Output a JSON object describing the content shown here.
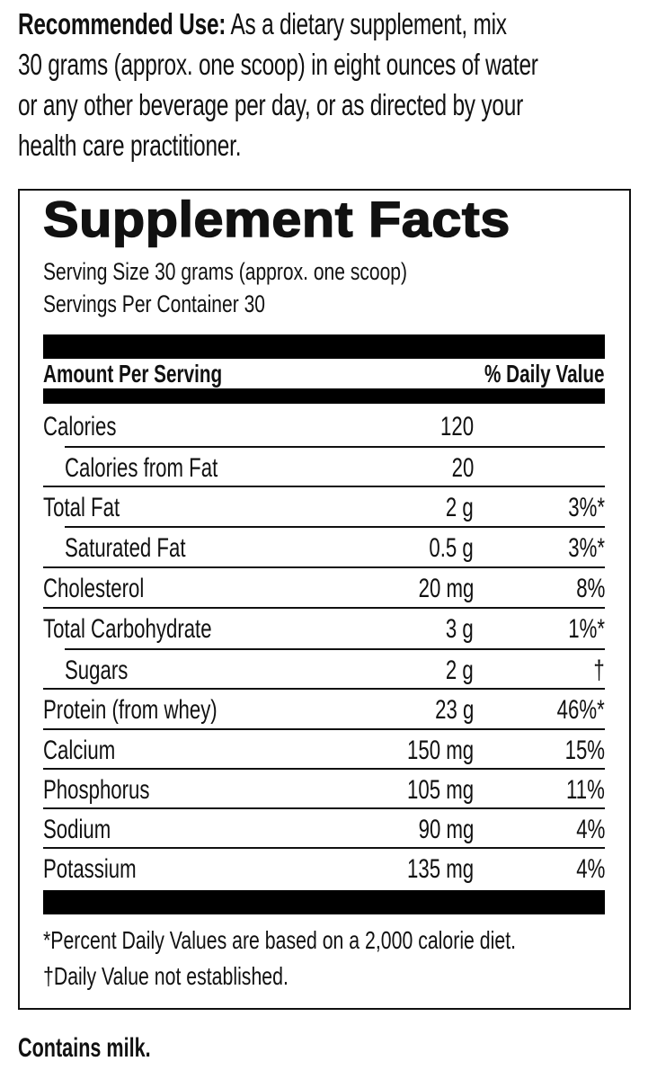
{
  "recommended_use": {
    "label": "Recommended Use:",
    "lines": [
      "As a dietary supplement, mix",
      "30 grams (approx. one scoop) in eight ounces of water",
      "or any other beverage per day, or as directed by your",
      "health care practitioner."
    ]
  },
  "facts": {
    "title": "Supplement Facts",
    "serving_size": "Serving Size 30 grams (approx. one scoop)",
    "servings_per_container": "Servings Per Container 30",
    "header_amount": "Amount Per Serving",
    "header_dv": "% Daily Value",
    "rows": [
      {
        "name": "Calories",
        "amount": "120",
        "dv": "",
        "indent": false
      },
      {
        "name": "Calories from Fat",
        "amount": "20",
        "dv": "",
        "indent": true
      },
      {
        "name": "Total Fat",
        "amount": "2 g",
        "dv": "3%*",
        "indent": false
      },
      {
        "name": "Saturated Fat",
        "amount": "0.5 g",
        "dv": "3%*",
        "indent": true
      },
      {
        "name": "Cholesterol",
        "amount": "20 mg",
        "dv": "8%",
        "indent": false
      },
      {
        "name": "Total Carbohydrate",
        "amount": "3 g",
        "dv": "1%*",
        "indent": false
      },
      {
        "name": "Sugars",
        "amount": "2 g",
        "dv": "†",
        "indent": true
      },
      {
        "name": "Protein (from whey)",
        "amount": "23 g",
        "dv": "46%*",
        "indent": false
      },
      {
        "name": "Calcium",
        "amount": "150 mg",
        "dv": "15%",
        "indent": false
      },
      {
        "name": "Phosphorus",
        "amount": "105 mg",
        "dv": "11%",
        "indent": false
      },
      {
        "name": "Sodium",
        "amount": "90 mg",
        "dv": "4%",
        "indent": false
      },
      {
        "name": "Potassium",
        "amount": "135 mg",
        "dv": "4%",
        "indent": false
      }
    ],
    "footnotes": [
      "*Percent Daily Values are based on a 2,000 calorie diet.",
      "†Daily Value not established."
    ]
  },
  "allergen": "Contains milk."
}
